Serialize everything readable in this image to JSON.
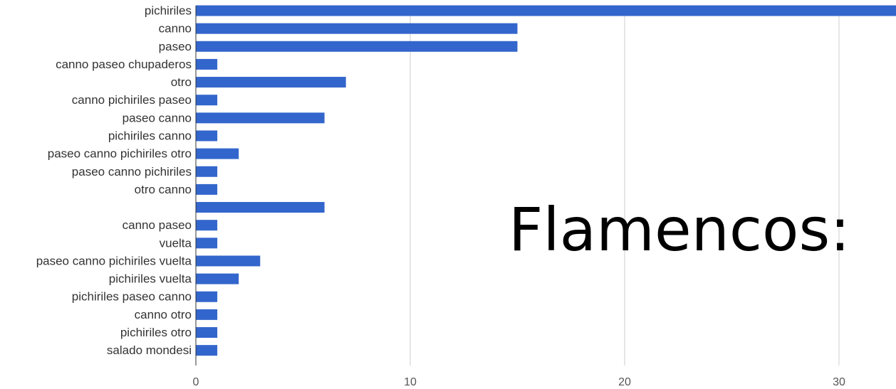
{
  "chart_data": {
    "type": "bar",
    "orientation": "horizontal",
    "title": "Flamencos:",
    "categories": [
      "pichiriles",
      "canno",
      "paseo",
      "canno paseo chupaderos",
      "otro",
      "canno pichiriles paseo",
      "paseo canno",
      "pichiriles canno",
      "paseo canno pichiriles otro",
      "paseo canno pichiriles",
      "otro canno",
      "",
      "canno paseo",
      "vuelta",
      "paseo canno pichiriles vuelta",
      "pichiriles vuelta",
      "pichiriles paseo canno",
      "canno otro",
      "pichiriles otro",
      "salado mondesi"
    ],
    "values": [
      33,
      15,
      15,
      1,
      7,
      1,
      6,
      1,
      2,
      1,
      1,
      6,
      1,
      1,
      3,
      2,
      1,
      1,
      1,
      1
    ],
    "xlim": [
      0,
      33
    ],
    "xticks": [
      "0",
      "10",
      "20",
      "30"
    ],
    "xtick_values": [
      0,
      10,
      20,
      30
    ],
    "grid": true,
    "bar_color": "#3366cc",
    "grid_color": "#cccccc"
  }
}
